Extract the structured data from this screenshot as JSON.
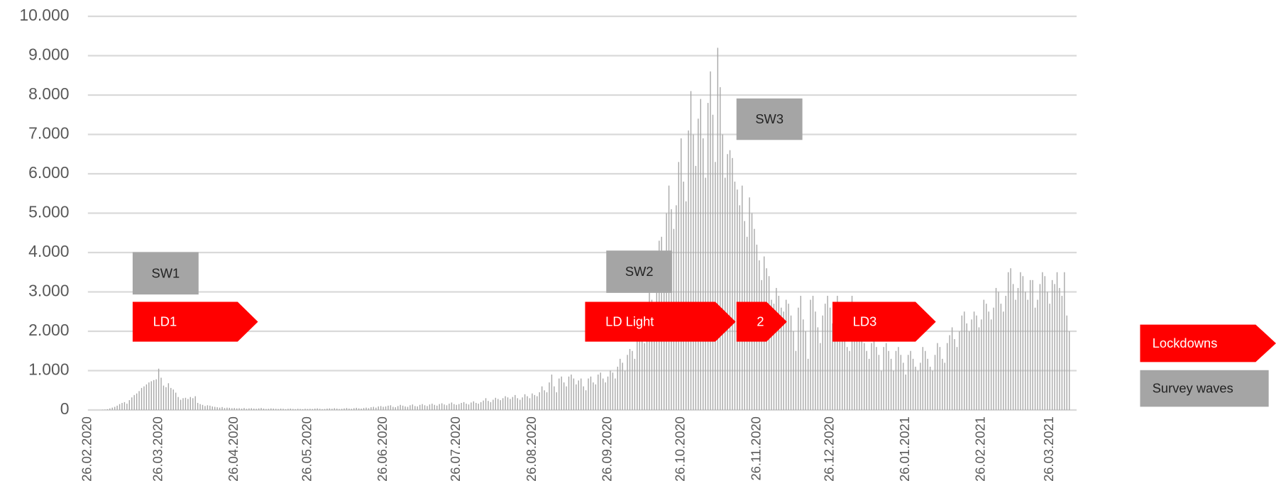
{
  "chart_data": {
    "type": "bar",
    "categories": [
      "26.02.2020",
      null,
      null,
      null,
      null,
      null,
      null,
      null,
      null,
      null,
      null,
      null,
      null,
      null,
      null,
      null,
      null,
      null,
      null,
      null,
      null,
      null,
      null,
      null,
      null,
      null,
      null,
      null,
      null,
      "26.03.2020",
      null,
      null,
      null,
      null,
      null,
      null,
      null,
      null,
      null,
      null,
      null,
      null,
      null,
      null,
      null,
      null,
      null,
      null,
      null,
      null,
      null,
      null,
      null,
      null,
      null,
      null,
      null,
      null,
      null,
      null,
      "26.04.2020",
      null,
      null,
      null,
      null,
      null,
      null,
      null,
      null,
      null,
      null,
      null,
      null,
      null,
      null,
      null,
      null,
      null,
      null,
      null,
      null,
      null,
      null,
      null,
      null,
      null,
      null,
      null,
      null,
      null,
      "26.05.2020",
      null,
      null,
      null,
      null,
      null,
      null,
      null,
      null,
      null,
      null,
      null,
      null,
      null,
      null,
      null,
      null,
      null,
      null,
      null,
      null,
      null,
      null,
      null,
      null,
      null,
      null,
      null,
      null,
      null,
      null,
      "26.06.2020",
      null,
      null,
      null,
      null,
      null,
      null,
      null,
      null,
      null,
      null,
      null,
      null,
      null,
      null,
      null,
      null,
      null,
      null,
      null,
      null,
      null,
      null,
      null,
      null,
      null,
      null,
      null,
      null,
      null,
      "26.07.2020",
      null,
      null,
      null,
      null,
      null,
      null,
      null,
      null,
      null,
      null,
      null,
      null,
      null,
      null,
      null,
      null,
      null,
      null,
      null,
      null,
      null,
      null,
      null,
      null,
      null,
      null,
      null,
      null,
      null,
      null,
      "26.08.2020",
      null,
      null,
      null,
      null,
      null,
      null,
      null,
      null,
      null,
      null,
      null,
      null,
      null,
      null,
      null,
      null,
      null,
      null,
      null,
      null,
      null,
      null,
      null,
      null,
      null,
      null,
      null,
      null,
      null,
      null,
      "26.09.2020",
      null,
      null,
      null,
      null,
      null,
      null,
      null,
      null,
      null,
      null,
      null,
      null,
      null,
      null,
      null,
      null,
      null,
      null,
      null,
      null,
      null,
      null,
      null,
      null,
      null,
      null,
      null,
      null,
      null,
      "26.10.2020",
      null,
      null,
      null,
      null,
      null,
      null,
      null,
      null,
      null,
      null,
      null,
      null,
      null,
      null,
      null,
      null,
      null,
      null,
      null,
      null,
      null,
      null,
      null,
      null,
      null,
      null,
      null,
      null,
      null,
      null,
      "26.11.2020",
      null,
      null,
      null,
      null,
      null,
      null,
      null,
      null,
      null,
      null,
      null,
      null,
      null,
      null,
      null,
      null,
      null,
      null,
      null,
      null,
      null,
      null,
      null,
      null,
      null,
      null,
      null,
      null,
      null,
      "26.12.2020",
      null,
      null,
      null,
      null,
      null,
      null,
      null,
      null,
      null,
      null,
      null,
      null,
      null,
      null,
      null,
      null,
      null,
      null,
      null,
      null,
      null,
      null,
      null,
      null,
      null,
      null,
      null,
      null,
      null,
      null,
      "26.01.2021",
      null,
      null,
      null,
      null,
      null,
      null,
      null,
      null,
      null,
      null,
      null,
      null,
      null,
      null,
      null,
      null,
      null,
      null,
      null,
      null,
      null,
      null,
      null,
      null,
      null,
      null,
      null,
      null,
      null,
      null,
      "26.02.2021",
      null,
      null,
      null,
      null,
      null,
      null,
      null,
      null,
      null,
      null,
      null,
      null,
      null,
      null,
      null,
      null,
      null,
      null,
      null,
      null,
      null,
      null,
      null,
      null,
      null,
      null,
      null,
      "26.03.2021",
      null,
      null,
      null,
      null,
      null,
      null,
      null,
      null
    ],
    "values": [
      0,
      0,
      0,
      0,
      0,
      0,
      5,
      10,
      20,
      40,
      60,
      80,
      110,
      150,
      180,
      200,
      160,
      250,
      320,
      380,
      420,
      480,
      560,
      600,
      650,
      700,
      730,
      760,
      780,
      1050,
      820,
      620,
      580,
      680,
      560,
      520,
      440,
      330,
      260,
      300,
      310,
      280,
      330,
      300,
      350,
      180,
      150,
      130,
      100,
      120,
      110,
      90,
      80,
      70,
      60,
      75,
      50,
      60,
      55,
      45,
      50,
      40,
      45,
      35,
      50,
      30,
      40,
      45,
      35,
      30,
      40,
      50,
      35,
      25,
      30,
      40,
      35,
      30,
      25,
      35,
      30,
      20,
      30,
      35,
      25,
      20,
      30,
      25,
      20,
      30,
      25,
      30,
      25,
      35,
      40,
      30,
      20,
      25,
      35,
      40,
      30,
      45,
      35,
      25,
      30,
      40,
      50,
      35,
      30,
      45,
      55,
      40,
      35,
      50,
      60,
      45,
      70,
      80,
      60,
      90,
      100,
      80,
      90,
      110,
      120,
      80,
      70,
      100,
      130,
      110,
      90,
      80,
      120,
      140,
      100,
      90,
      130,
      150,
      120,
      100,
      140,
      160,
      130,
      110,
      150,
      170,
      140,
      120,
      160,
      190,
      150,
      130,
      150,
      180,
      200,
      160,
      140,
      190,
      220,
      180,
      160,
      200,
      240,
      300,
      230,
      200,
      260,
      310,
      280,
      250,
      300,
      350,
      320,
      280,
      330,
      380,
      300,
      260,
      320,
      400,
      350,
      300,
      420,
      380,
      350,
      450,
      600,
      500,
      450,
      700,
      900,
      600,
      450,
      800,
      850,
      700,
      600,
      850,
      900,
      800,
      650,
      750,
      800,
      600,
      500,
      800,
      850,
      700,
      650,
      900,
      950,
      800,
      700,
      850,
      1000,
      950,
      800,
      1100,
      1300,
      1200,
      1000,
      1400,
      1550,
      1500,
      1300,
      1800,
      2000,
      1900,
      1700,
      2600,
      3300,
      2800,
      2500,
      3800,
      4300,
      4400,
      3800,
      5000,
      5700,
      5100,
      4600,
      5200,
      6300,
      6900,
      5800,
      5300,
      7100,
      8100,
      7000,
      6200,
      7400,
      7900,
      6900,
      5900,
      7800,
      8600,
      7500,
      6300,
      9200,
      8200,
      7000,
      5900,
      6500,
      6600,
      6400,
      5800,
      5600,
      5200,
      5700,
      4800,
      4400,
      5400,
      5000,
      4600,
      4200,
      3800,
      3300,
      3900,
      3600,
      3400,
      2800,
      2700,
      3100,
      2900,
      2600,
      2500,
      2800,
      2700,
      2400,
      2000,
      1500,
      2600,
      2900,
      2300,
      2000,
      1300,
      2800,
      2900,
      2500,
      2100,
      1700,
      2400,
      2700,
      2900,
      2600,
      2200,
      1800,
      2900,
      2600,
      2300,
      2000,
      1600,
      1500,
      2900,
      2700,
      2400,
      2000,
      1800,
      1700,
      1500,
      1300,
      1700,
      1900,
      1600,
      1400,
      1000,
      1600,
      1700,
      1500,
      1300,
      1000,
      1500,
      1600,
      1400,
      1200,
      900,
      1400,
      1500,
      1300,
      1100,
      1000,
      1200,
      1600,
      1500,
      1300,
      1100,
      1000,
      1400,
      1700,
      1600,
      1300,
      1200,
      1700,
      1900,
      2100,
      1800,
      1600,
      2000,
      2400,
      2500,
      2200,
      2000,
      2300,
      2500,
      2400,
      2100,
      2300,
      2800,
      2700,
      2500,
      2300,
      2600,
      3100,
      3000,
      2700,
      2500,
      2900,
      3500,
      3600,
      3200,
      2800,
      3100,
      3500,
      3400,
      3000,
      2800,
      3300,
      3300,
      2600,
      2800,
      3200,
      3500,
      3400,
      3000,
      2700,
      3300,
      3200,
      3500,
      3100,
      2900,
      3500,
      2400,
      2000
    ],
    "color": "#a6a6a6",
    "ylim": [
      0,
      10000
    ],
    "yticks": [
      0,
      {
        "value": 1000,
        "label": "1.000"
      },
      {
        "value": 2000,
        "label": "2.000"
      },
      {
        "value": 3000,
        "label": "3.000"
      },
      {
        "value": 4000,
        "label": "4.000"
      },
      {
        "value": 5000,
        "label": "5.000"
      },
      {
        "value": 6000,
        "label": "6.000"
      },
      {
        "value": 7000,
        "label": "7.000"
      },
      {
        "value": 8000,
        "label": "8.000"
      },
      {
        "value": 9000,
        "label": "9.000"
      },
      {
        "value": 10000,
        "label": "10.000"
      }
    ],
    "grid": true,
    "annotations": [
      {
        "text": "SW1",
        "kind": "Survey waves"
      },
      {
        "text": "LD1",
        "kind": "Lockdowns"
      },
      {
        "text": "SW2",
        "kind": "Survey waves"
      },
      {
        "text": "LD Light",
        "kind": "Lockdowns"
      },
      {
        "text": "2",
        "kind": "Lockdowns"
      },
      {
        "text": "SW3",
        "kind": "Survey waves"
      },
      {
        "text": "LD3",
        "kind": "Lockdowns"
      }
    ],
    "legend": [
      {
        "name": "Lockdowns",
        "color": "#ff0000"
      },
      {
        "name": "Survey waves",
        "color": "#a5a5a5"
      }
    ]
  }
}
